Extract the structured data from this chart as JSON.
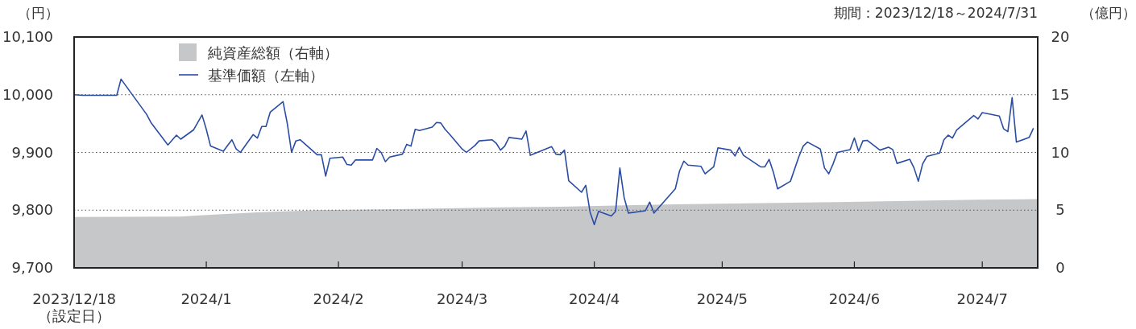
{
  "chart_data": {
    "type": "line",
    "ylabel": "（円）",
    "y2label": "（億円）",
    "annotations": [
      "期間：2023/12/18～2024/7/31"
    ],
    "xlim": [
      "2023-12-18",
      "2024-07-31"
    ],
    "xticks": [
      {
        "value": "2023-12-18",
        "label": "2023/12/18\n（設定日）"
      },
      {
        "value": "2024-01-18",
        "label": "2024/1"
      },
      {
        "value": "2024-02-18",
        "label": "2024/2"
      },
      {
        "value": "2024-03-18",
        "label": "2024/3"
      },
      {
        "value": "2024-04-18",
        "label": "2024/4"
      },
      {
        "value": "2024-05-18",
        "label": "2024/5"
      },
      {
        "value": "2024-06-18",
        "label": "2024/6"
      },
      {
        "value": "2024-07-18",
        "label": "2024/7"
      }
    ],
    "ylim": [
      9700,
      10100
    ],
    "yticks": [
      {
        "value": 9700,
        "label": "9,700"
      },
      {
        "value": 9800,
        "label": "9,800"
      },
      {
        "value": 9900,
        "label": "9,900"
      },
      {
        "value": 10000,
        "label": "10,000"
      },
      {
        "value": 10100,
        "label": "10,100"
      }
    ],
    "y2lim": [
      0,
      20
    ],
    "y2ticks": [
      0,
      5,
      10,
      15,
      20
    ],
    "grid": "y",
    "legend": "top left",
    "series": [
      {
        "name": "純資産総額（右軸）",
        "type": "area",
        "axis": "y2",
        "color": "#c6c7c9",
        "x": [
          "2023-12-18",
          "2024-01-12",
          "2024-01-19",
          "2024-01-30",
          "2024-02-13",
          "2024-03-06",
          "2024-03-28",
          "2024-04-10",
          "2024-05-07",
          "2024-06-14",
          "2024-07-17",
          "2024-07-31"
        ],
        "values": [
          4.4,
          4.45,
          4.6,
          4.8,
          5.0,
          5.1,
          5.25,
          5.3,
          5.5,
          5.7,
          5.9,
          5.95
        ]
      },
      {
        "name": "基準価額（左軸）",
        "color": "#2a4ca3",
        "x": [
          "2023-12-18",
          "2023-12-20",
          "2023-12-28",
          "2023-12-29",
          "2024-01-04",
          "2024-01-05",
          "2024-01-09",
          "2024-01-11",
          "2024-01-12",
          "2024-01-15",
          "2024-01-17",
          "2024-01-18",
          "2024-01-19",
          "2024-01-22",
          "2024-01-24",
          "2024-01-25",
          "2024-01-26",
          "2024-01-29",
          "2024-01-30",
          "2024-01-31",
          "2024-02-01",
          "2024-02-02",
          "2024-02-05",
          "2024-02-06",
          "2024-02-07",
          "2024-02-08",
          "2024-02-09",
          "2024-02-13",
          "2024-02-14",
          "2024-02-15",
          "2024-02-16",
          "2024-02-19",
          "2024-02-20",
          "2024-02-21",
          "2024-02-22",
          "2024-02-26",
          "2024-02-27",
          "2024-02-28",
          "2024-02-29",
          "2024-03-01",
          "2024-03-04",
          "2024-03-05",
          "2024-03-06",
          "2024-03-07",
          "2024-03-08",
          "2024-03-11",
          "2024-03-12",
          "2024-03-13",
          "2024-03-14",
          "2024-03-15",
          "2024-03-18",
          "2024-03-19",
          "2024-03-21",
          "2024-03-22",
          "2024-03-25",
          "2024-03-26",
          "2024-03-27",
          "2024-03-28",
          "2024-03-29",
          "2024-04-01",
          "2024-04-02",
          "2024-04-03",
          "2024-04-08",
          "2024-04-09",
          "2024-04-10",
          "2024-04-11",
          "2024-04-12",
          "2024-04-15",
          "2024-04-16",
          "2024-04-17",
          "2024-04-18",
          "2024-04-19",
          "2024-04-22",
          "2024-04-23",
          "2024-04-24",
          "2024-04-25",
          "2024-04-26",
          "2024-04-30",
          "2024-05-01",
          "2024-05-02",
          "2024-05-07",
          "2024-05-08",
          "2024-05-09",
          "2024-05-10",
          "2024-05-13",
          "2024-05-14",
          "2024-05-15",
          "2024-05-16",
          "2024-05-17",
          "2024-05-20",
          "2024-05-21",
          "2024-05-22",
          "2024-05-23",
          "2024-05-27",
          "2024-05-28",
          "2024-05-29",
          "2024-05-30",
          "2024-05-31",
          "2024-06-03",
          "2024-06-05",
          "2024-06-06",
          "2024-06-07",
          "2024-06-10",
          "2024-06-11",
          "2024-06-12",
          "2024-06-13",
          "2024-06-14",
          "2024-06-17",
          "2024-06-18",
          "2024-06-19",
          "2024-06-20",
          "2024-06-21",
          "2024-06-24",
          "2024-06-26",
          "2024-06-27",
          "2024-06-28",
          "2024-07-01",
          "2024-07-02",
          "2024-07-03",
          "2024-07-04",
          "2024-07-05",
          "2024-07-08",
          "2024-07-09",
          "2024-07-10",
          "2024-07-11",
          "2024-07-12",
          "2024-07-16",
          "2024-07-17",
          "2024-07-18",
          "2024-07-22",
          "2024-07-23",
          "2024-07-24",
          "2024-07-25",
          "2024-07-26",
          "2024-07-29",
          "2024-07-30"
        ],
        "values": [
          10000,
          9999,
          9999,
          10027,
          9966,
          9952,
          9913,
          9930,
          9923,
          9939,
          9965,
          9940,
          9911,
          9902,
          9922,
          9906,
          9900,
          9931,
          9925,
          9945,
          9945,
          9970,
          9988,
          9950,
          9900,
          9920,
          9922,
          9896,
          9896,
          9859,
          9890,
          9892,
          9879,
          9878,
          9887,
          9887,
          9907,
          9900,
          9884,
          9892,
          9897,
          9914,
          9911,
          9940,
          9938,
          9944,
          9952,
          9951,
          9940,
          9932,
          9906,
          9900,
          9912,
          9920,
          9922,
          9916,
          9904,
          9911,
          9926,
          9923,
          9937,
          9895,
          9910,
          9897,
          9896,
          9904,
          9851,
          9831,
          9843,
          9797,
          9775,
          9798,
          9790,
          9798,
          9873,
          9822,
          9795,
          9799,
          9814,
          9795,
          9837,
          9868,
          9885,
          9878,
          9876,
          9863,
          9869,
          9875,
          9908,
          9904,
          9894,
          9909,
          9895,
          9875,
          9875,
          9888,
          9866,
          9837,
          9850,
          9893,
          9911,
          9918,
          9906,
          9873,
          9863,
          9880,
          9900,
          9905,
          9925,
          9902,
          9920,
          9921,
          9904,
          9909,
          9905,
          9881,
          9888,
          9873,
          9850,
          9880,
          9893,
          9899,
          9922,
          9930,
          9925,
          9939,
          9964,
          9958,
          9969,
          9963,
          9941,
          9936,
          9995,
          9918,
          9926,
          9942
        ]
      }
    ]
  }
}
